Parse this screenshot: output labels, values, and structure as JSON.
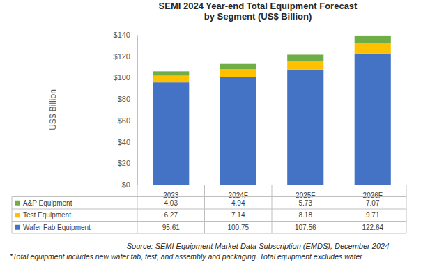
{
  "chart_data": {
    "type": "bar",
    "stacked": true,
    "grid": false,
    "title": "SEMI 2024 Year-end Total Equipment Forecast\nby Segment (US$ Billion)",
    "y_label": "US$ Billion",
    "categories": [
      "2023",
      "2024F",
      "2025F",
      "2026F"
    ],
    "series": [
      {
        "name": "Wafer Fab Equipment",
        "color": "#4472c4",
        "values": [
          95.61,
          100.75,
          107.56,
          122.64
        ]
      },
      {
        "name": "Test Equipment",
        "color": "#ffc000",
        "values": [
          6.27,
          7.14,
          8.18,
          9.71
        ]
      },
      {
        "name": "A&P Equipment",
        "color": "#70ad47",
        "values": [
          4.03,
          4.94,
          5.73,
          7.07
        ]
      }
    ],
    "ylim": [
      0,
      140
    ],
    "yticks": [
      {
        "value": 0,
        "label": "$0"
      },
      {
        "value": 20,
        "label": "$20"
      },
      {
        "value": 40,
        "label": "$40"
      },
      {
        "value": 60,
        "label": "$60"
      },
      {
        "value": 80,
        "label": "$80"
      },
      {
        "value": 100,
        "label": "$100"
      },
      {
        "value": 120,
        "label": "$120"
      },
      {
        "value": 140,
        "label": "$140"
      }
    ],
    "annotations": [
      "Source: SEMI Equipment Market Data Subscription (EMDS), December 2024",
      "*Total equipment includes new wafer fab, test, and assembly and packaging. Total equipment excludes wafer"
    ]
  }
}
